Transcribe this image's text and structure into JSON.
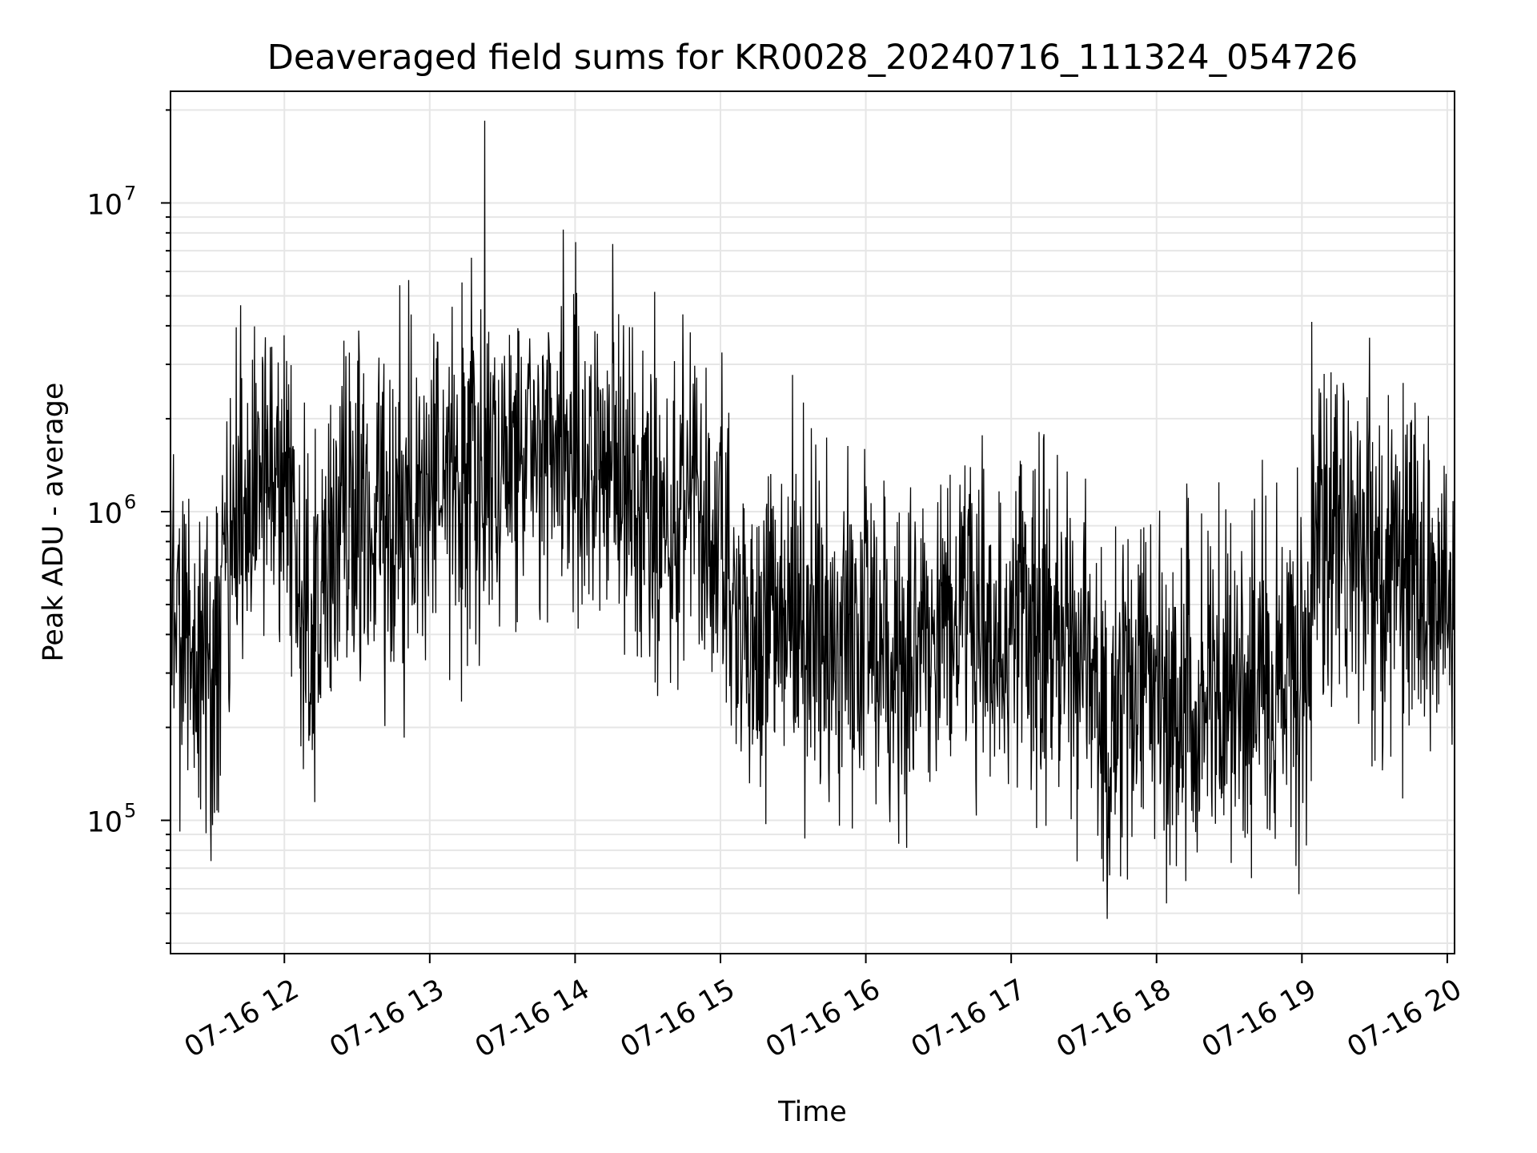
{
  "chart_data": {
    "type": "line",
    "title": "Deaveraged field sums for KR0028_20240716_111324_054726",
    "xlabel": "Time",
    "ylabel": "Peak ADU - average",
    "yscale": "log",
    "grid": true,
    "line_color": "#000000",
    "grid_color": "#e6e6e6",
    "xlim": [
      "2024-07-16 11:13",
      "2024-07-16 20:03"
    ],
    "ylim": [
      37000,
      23000000
    ],
    "x_ticks": [
      {
        "value": "2024-07-16 12:00",
        "label": "07-16 12"
      },
      {
        "value": "2024-07-16 13:00",
        "label": "07-16 13"
      },
      {
        "value": "2024-07-16 14:00",
        "label": "07-16 14"
      },
      {
        "value": "2024-07-16 15:00",
        "label": "07-16 15"
      },
      {
        "value": "2024-07-16 16:00",
        "label": "07-16 16"
      },
      {
        "value": "2024-07-16 17:00",
        "label": "07-16 17"
      },
      {
        "value": "2024-07-16 18:00",
        "label": "07-16 18"
      },
      {
        "value": "2024-07-16 19:00",
        "label": "07-16 19"
      },
      {
        "value": "2024-07-16 20:00",
        "label": "07-16 20"
      }
    ],
    "y_ticks": [
      {
        "value": 100000,
        "base": "10",
        "exp": "5"
      },
      {
        "value": 1000000,
        "base": "10",
        "exp": "6"
      },
      {
        "value": 10000000,
        "base": "10",
        "exp": "7"
      }
    ],
    "series": [
      {
        "x": [
          "2024-07-16 11:13",
          "2024-07-16 11:20",
          "2024-07-16 11:30",
          "2024-07-16 11:40",
          "2024-07-16 11:50",
          "2024-07-16 12:00",
          "2024-07-16 12:10",
          "2024-07-16 12:20",
          "2024-07-16 12:30",
          "2024-07-16 12:40",
          "2024-07-16 12:50",
          "2024-07-16 13:00",
          "2024-07-16 13:10",
          "2024-07-16 13:20",
          "2024-07-16 13:30",
          "2024-07-16 13:40",
          "2024-07-16 13:50",
          "2024-07-16 14:00",
          "2024-07-16 14:10",
          "2024-07-16 14:20",
          "2024-07-16 14:30",
          "2024-07-16 14:40",
          "2024-07-16 14:50",
          "2024-07-16 15:00",
          "2024-07-16 15:10",
          "2024-07-16 15:20",
          "2024-07-16 15:30",
          "2024-07-16 15:40",
          "2024-07-16 15:50",
          "2024-07-16 16:00",
          "2024-07-16 16:10",
          "2024-07-16 16:20",
          "2024-07-16 16:30",
          "2024-07-16 16:40",
          "2024-07-16 16:50",
          "2024-07-16 17:00",
          "2024-07-16 17:10",
          "2024-07-16 17:20",
          "2024-07-16 17:30",
          "2024-07-16 17:40",
          "2024-07-16 17:50",
          "2024-07-16 18:00",
          "2024-07-16 18:10",
          "2024-07-16 18:20",
          "2024-07-16 18:30",
          "2024-07-16 18:40",
          "2024-07-16 18:50",
          "2024-07-16 19:00",
          "2024-07-16 19:10",
          "2024-07-16 19:20",
          "2024-07-16 19:30",
          "2024-07-16 19:40",
          "2024-07-16 19:50",
          "2024-07-16 20:00",
          "2024-07-16 20:03"
        ],
        "y": [
          500000,
          350000,
          300000,
          800000,
          1400000,
          1300000,
          400000,
          900000,
          1000000,
          750000,
          900000,
          1400000,
          1200000,
          1300000,
          1500000,
          1600000,
          1700000,
          1500000,
          1400000,
          1200000,
          1100000,
          1000000,
          950000,
          700000,
          400000,
          450000,
          500000,
          420000,
          430000,
          400000,
          380000,
          350000,
          420000,
          500000,
          450000,
          400000,
          420000,
          380000,
          330000,
          220000,
          250000,
          270000,
          250000,
          240000,
          230000,
          250000,
          270000,
          300000,
          900000,
          800000,
          650000,
          600000,
          550000,
          520000,
          500000
        ]
      }
    ]
  }
}
